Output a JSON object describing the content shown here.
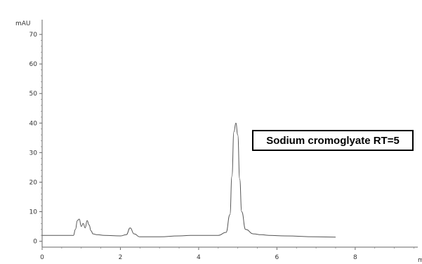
{
  "chart_data": {
    "type": "line",
    "ylabel": "mAU",
    "xlabel": "m",
    "xlim": [
      0,
      9.6
    ],
    "ylim": [
      -2,
      75
    ],
    "y_ticks": [
      0,
      10,
      20,
      30,
      40,
      50,
      60,
      70
    ],
    "y_tick_labels": [
      "0",
      "10",
      "20",
      "30",
      "40",
      "50",
      "60",
      "70"
    ],
    "x_ticks": [
      0,
      2,
      4,
      6,
      8
    ],
    "x_tick_labels": [
      "0",
      "2",
      "4",
      "6",
      "8"
    ],
    "grid": false,
    "line_color": "#555555",
    "series": [
      {
        "x": [
          0.0,
          0.5,
          0.8,
          0.85,
          0.9,
          0.95,
          1.0,
          1.05,
          1.1,
          1.15,
          1.2,
          1.25,
          1.3,
          1.4,
          1.6,
          2.0,
          2.15,
          2.25,
          2.35,
          2.5,
          3.0,
          3.5,
          3.8,
          4.0,
          4.5,
          4.7,
          4.8,
          4.85,
          4.9,
          4.95,
          5.0,
          5.05,
          5.1,
          5.2,
          5.4,
          5.6,
          5.8,
          6.2,
          7.0,
          7.5
        ],
        "values": [
          2.0,
          2.0,
          2.0,
          4.0,
          7.0,
          7.5,
          5.0,
          6.0,
          4.5,
          7.0,
          5.5,
          3.5,
          2.5,
          2.2,
          2.0,
          1.8,
          2.2,
          4.5,
          2.5,
          1.5,
          1.5,
          1.8,
          2.0,
          2.0,
          2.0,
          3.0,
          9.0,
          22.0,
          37.0,
          40.0,
          36.0,
          21.0,
          10.0,
          4.0,
          2.5,
          2.2,
          2.0,
          1.8,
          1.5,
          1.4
        ]
      }
    ],
    "annotations": [
      "Sodium cromoglyate RT=5"
    ]
  }
}
